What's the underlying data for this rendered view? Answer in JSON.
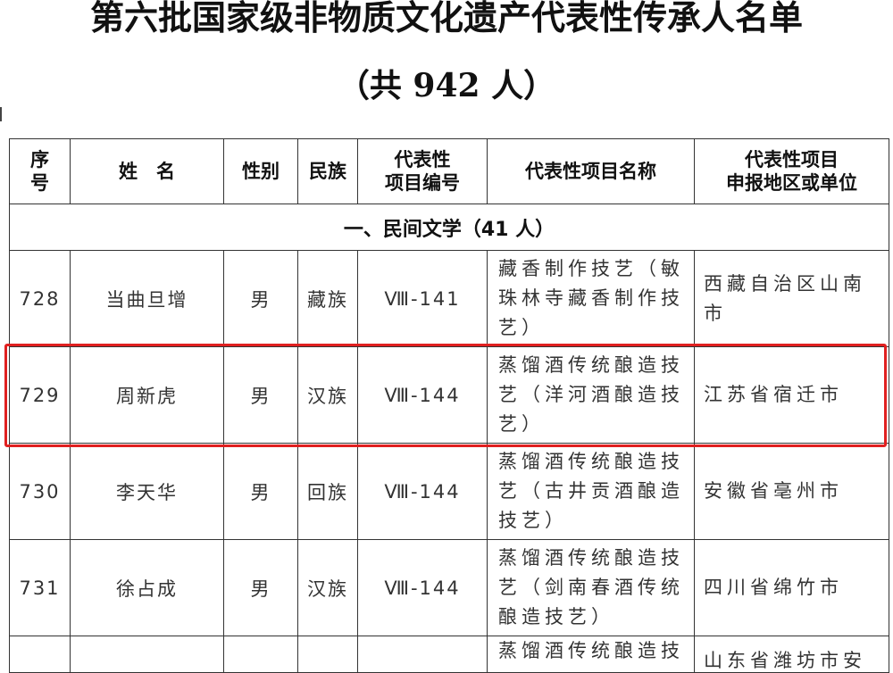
{
  "title": "第六批国家级非物质文化遗产代表性传承人名单",
  "subtitle": "（共 942 人）",
  "table": {
    "headers": [
      "序号",
      "姓　名",
      "性别",
      "民族",
      "代表性项目编号",
      "代表性项目名称",
      "代表性项目申报地区或单位"
    ],
    "header_lines": {
      "seq": [
        "序",
        "号"
      ],
      "code": [
        "代表性",
        "项目编号"
      ],
      "region": [
        "代表性项目",
        "申报地区或单位"
      ]
    },
    "section": "一、民间文学（41 人）",
    "rows": [
      {
        "seq": "728",
        "name": "当曲旦增",
        "gender": "男",
        "ethnicity": "藏族",
        "code": "Ⅷ-141",
        "project": "藏香制作技艺（敏珠林寺藏香制作技艺）",
        "region": "西藏自治区山南市"
      },
      {
        "seq": "729",
        "name": "周新虎",
        "gender": "男",
        "ethnicity": "汉族",
        "code": "Ⅷ-144",
        "project": "蒸馏酒传统酿造技艺（洋河酒酿造技艺）",
        "region": "江苏省宿迁市"
      },
      {
        "seq": "730",
        "name": "李天华",
        "gender": "男",
        "ethnicity": "回族",
        "code": "Ⅷ-144",
        "project": "蒸馏酒传统酿造技艺（古井贡酒酿造技艺）",
        "region": "安徽省亳州市"
      },
      {
        "seq": "731",
        "name": "徐占成",
        "gender": "男",
        "ethnicity": "汉族",
        "code": "Ⅷ-144",
        "project": "蒸馏酒传统酿造技艺（剑南春酒传统酿造技艺）",
        "region": "四川省绵竹市"
      },
      {
        "seq": "",
        "name": "",
        "gender": "",
        "ethnicity": "",
        "code": "",
        "project": "蒸馏酒传统酿造技",
        "region": "山东省潍坊市安"
      }
    ]
  },
  "highlight_color": "#e02020"
}
